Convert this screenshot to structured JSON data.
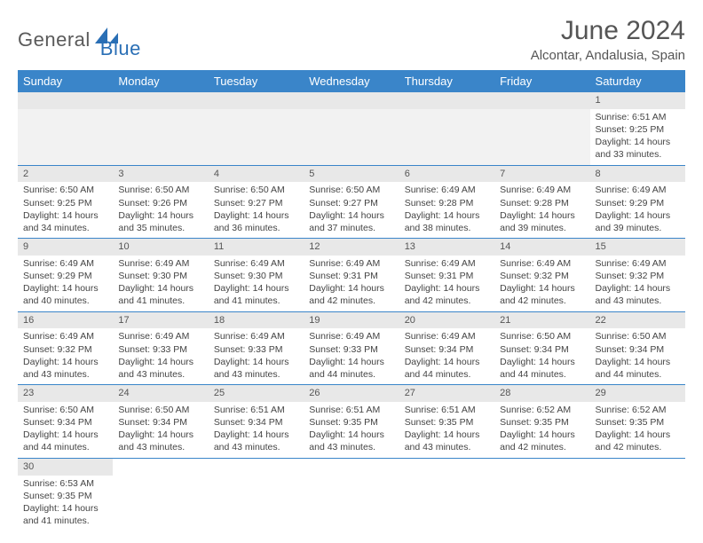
{
  "logo": {
    "part1": "General",
    "part2": "Blue"
  },
  "title": "June 2024",
  "location": "Alcontar, Andalusia, Spain",
  "colors": {
    "header_bg": "#3a85c9",
    "header_text": "#ffffff",
    "row_divider": "#3a85c9",
    "daynum_bg": "#e8e8e8",
    "logo_gray": "#5a5a5a",
    "logo_blue": "#2a6fb5"
  },
  "weekdays": [
    "Sunday",
    "Monday",
    "Tuesday",
    "Wednesday",
    "Thursday",
    "Friday",
    "Saturday"
  ],
  "weeks": [
    [
      null,
      null,
      null,
      null,
      null,
      null,
      {
        "n": "1",
        "sr": "6:51 AM",
        "ss": "9:25 PM",
        "dl": "14 hours and 33 minutes."
      }
    ],
    [
      {
        "n": "2",
        "sr": "6:50 AM",
        "ss": "9:25 PM",
        "dl": "14 hours and 34 minutes."
      },
      {
        "n": "3",
        "sr": "6:50 AM",
        "ss": "9:26 PM",
        "dl": "14 hours and 35 minutes."
      },
      {
        "n": "4",
        "sr": "6:50 AM",
        "ss": "9:27 PM",
        "dl": "14 hours and 36 minutes."
      },
      {
        "n": "5",
        "sr": "6:50 AM",
        "ss": "9:27 PM",
        "dl": "14 hours and 37 minutes."
      },
      {
        "n": "6",
        "sr": "6:49 AM",
        "ss": "9:28 PM",
        "dl": "14 hours and 38 minutes."
      },
      {
        "n": "7",
        "sr": "6:49 AM",
        "ss": "9:28 PM",
        "dl": "14 hours and 39 minutes."
      },
      {
        "n": "8",
        "sr": "6:49 AM",
        "ss": "9:29 PM",
        "dl": "14 hours and 39 minutes."
      }
    ],
    [
      {
        "n": "9",
        "sr": "6:49 AM",
        "ss": "9:29 PM",
        "dl": "14 hours and 40 minutes."
      },
      {
        "n": "10",
        "sr": "6:49 AM",
        "ss": "9:30 PM",
        "dl": "14 hours and 41 minutes."
      },
      {
        "n": "11",
        "sr": "6:49 AM",
        "ss": "9:30 PM",
        "dl": "14 hours and 41 minutes."
      },
      {
        "n": "12",
        "sr": "6:49 AM",
        "ss": "9:31 PM",
        "dl": "14 hours and 42 minutes."
      },
      {
        "n": "13",
        "sr": "6:49 AM",
        "ss": "9:31 PM",
        "dl": "14 hours and 42 minutes."
      },
      {
        "n": "14",
        "sr": "6:49 AM",
        "ss": "9:32 PM",
        "dl": "14 hours and 42 minutes."
      },
      {
        "n": "15",
        "sr": "6:49 AM",
        "ss": "9:32 PM",
        "dl": "14 hours and 43 minutes."
      }
    ],
    [
      {
        "n": "16",
        "sr": "6:49 AM",
        "ss": "9:32 PM",
        "dl": "14 hours and 43 minutes."
      },
      {
        "n": "17",
        "sr": "6:49 AM",
        "ss": "9:33 PM",
        "dl": "14 hours and 43 minutes."
      },
      {
        "n": "18",
        "sr": "6:49 AM",
        "ss": "9:33 PM",
        "dl": "14 hours and 43 minutes."
      },
      {
        "n": "19",
        "sr": "6:49 AM",
        "ss": "9:33 PM",
        "dl": "14 hours and 44 minutes."
      },
      {
        "n": "20",
        "sr": "6:49 AM",
        "ss": "9:34 PM",
        "dl": "14 hours and 44 minutes."
      },
      {
        "n": "21",
        "sr": "6:50 AM",
        "ss": "9:34 PM",
        "dl": "14 hours and 44 minutes."
      },
      {
        "n": "22",
        "sr": "6:50 AM",
        "ss": "9:34 PM",
        "dl": "14 hours and 44 minutes."
      }
    ],
    [
      {
        "n": "23",
        "sr": "6:50 AM",
        "ss": "9:34 PM",
        "dl": "14 hours and 44 minutes."
      },
      {
        "n": "24",
        "sr": "6:50 AM",
        "ss": "9:34 PM",
        "dl": "14 hours and 43 minutes."
      },
      {
        "n": "25",
        "sr": "6:51 AM",
        "ss": "9:34 PM",
        "dl": "14 hours and 43 minutes."
      },
      {
        "n": "26",
        "sr": "6:51 AM",
        "ss": "9:35 PM",
        "dl": "14 hours and 43 minutes."
      },
      {
        "n": "27",
        "sr": "6:51 AM",
        "ss": "9:35 PM",
        "dl": "14 hours and 43 minutes."
      },
      {
        "n": "28",
        "sr": "6:52 AM",
        "ss": "9:35 PM",
        "dl": "14 hours and 42 minutes."
      },
      {
        "n": "29",
        "sr": "6:52 AM",
        "ss": "9:35 PM",
        "dl": "14 hours and 42 minutes."
      }
    ],
    [
      {
        "n": "30",
        "sr": "6:53 AM",
        "ss": "9:35 PM",
        "dl": "14 hours and 41 minutes."
      },
      null,
      null,
      null,
      null,
      null,
      null
    ]
  ],
  "labels": {
    "sunrise": "Sunrise:",
    "sunset": "Sunset:",
    "daylight": "Daylight:"
  }
}
